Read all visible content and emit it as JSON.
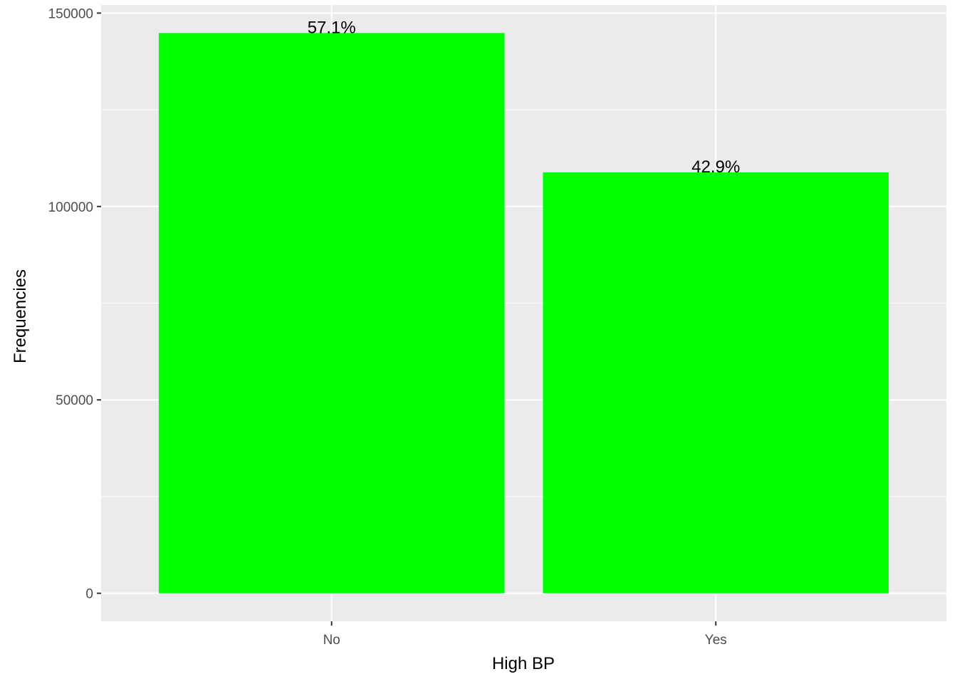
{
  "chart_data": {
    "type": "bar",
    "categories": [
      "No",
      "Yes"
    ],
    "values": [
      144851,
      108829
    ],
    "data_labels": [
      "57.1%",
      "42.9%"
    ],
    "xlabel": "High BP",
    "ylabel": "Frequencies",
    "ylim": [
      -7242,
      152094
    ],
    "y_ticks": [
      0,
      50000,
      100000,
      150000
    ],
    "y_tick_labels": [
      "0",
      "50000",
      "100000",
      "150000"
    ],
    "grid": true,
    "legend": "none",
    "bar_color": "#00FF00",
    "panel_background": "#EBEBEB",
    "grid_color": "#FFFFFF"
  }
}
